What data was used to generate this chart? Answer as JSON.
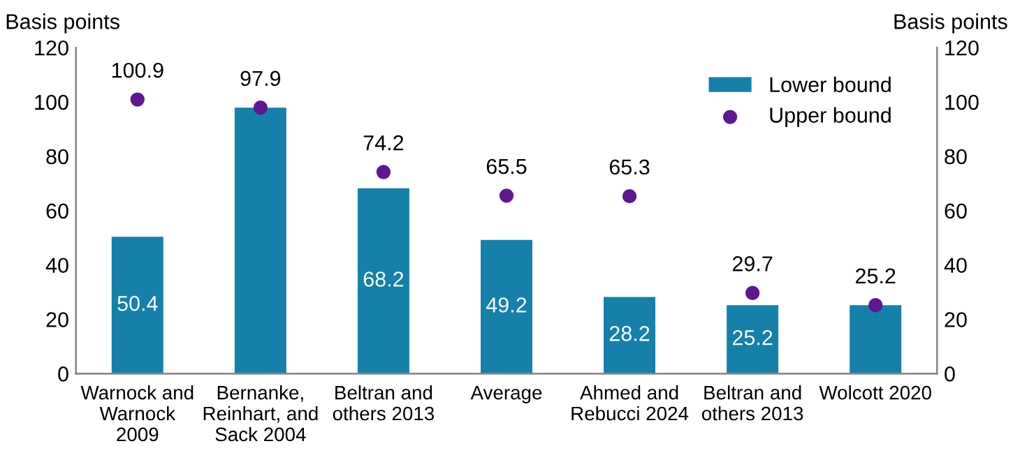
{
  "chart_data": {
    "type": "bar",
    "ylabel": "Basis points",
    "y2label": "Basis points",
    "categories": [
      "Warnock and\nWarnock\n2009",
      "Bernanke,\nReinhart, and\nSack 2004",
      "Beltran and\nothers 2013",
      "Average",
      "Ahmed and\nRebucci 2024",
      "Beltran and\nothers 2013",
      "Wolcott 2020"
    ],
    "series": [
      {
        "name": "Lower bound",
        "color": "#1580aa",
        "values": [
          50.4,
          97.9,
          68.2,
          49.2,
          28.2,
          25.2,
          25.2
        ],
        "value_labels": [
          "50.4",
          null,
          "68.2",
          "49.2",
          "28.2",
          "25.2",
          null
        ]
      },
      {
        "name": "Upper bound",
        "type": "scatter",
        "color": "#5f1791",
        "marker": "circle",
        "values": [
          100.9,
          97.9,
          74.2,
          65.5,
          65.3,
          29.7,
          25.2
        ],
        "value_labels": [
          "100.9",
          "97.9",
          "74.2",
          "65.5",
          "65.3",
          "29.7",
          "25.2"
        ]
      }
    ],
    "ylim": [
      0,
      120
    ],
    "yticks": [
      0,
      20,
      40,
      60,
      80,
      100,
      120
    ],
    "y2lim": [
      0,
      120
    ],
    "y2ticks": [
      0,
      20,
      40,
      60,
      80,
      100,
      120
    ],
    "legend": "top right",
    "grid": false
  }
}
